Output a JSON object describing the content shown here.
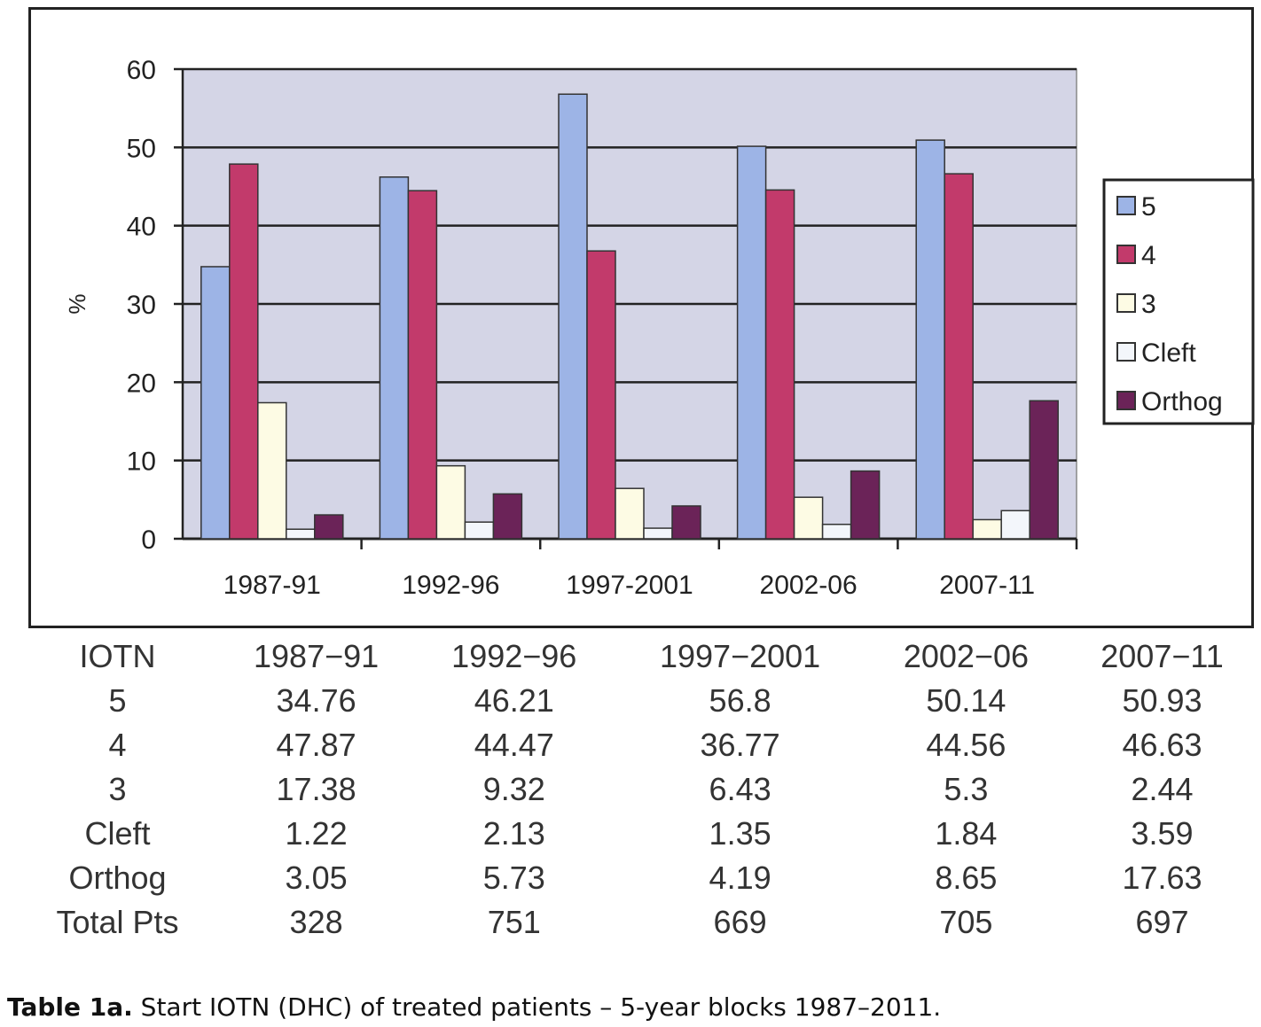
{
  "chart_data": {
    "type": "bar",
    "title": "",
    "xlabel": "",
    "ylabel": "%",
    "ylim": [
      0,
      60
    ],
    "yticks": [
      0,
      10,
      20,
      30,
      40,
      50,
      60
    ],
    "grid": true,
    "legend_position": "right",
    "categories": [
      "1987-91",
      "1992-96",
      "1997-2001",
      "2002-06",
      "2007-11"
    ],
    "series": [
      {
        "name": "5",
        "values": [
          34.76,
          46.21,
          56.8,
          50.14,
          50.93
        ],
        "color": "#9db4e6"
      },
      {
        "name": "4",
        "values": [
          47.87,
          44.47,
          36.77,
          44.56,
          46.63
        ],
        "color": "#c23a6b"
      },
      {
        "name": "3",
        "values": [
          17.38,
          9.32,
          6.43,
          5.3,
          2.44
        ],
        "color": "#fdfbe4"
      },
      {
        "name": "Cleft",
        "values": [
          1.22,
          2.13,
          1.35,
          1.84,
          3.59
        ],
        "color": "#f3f6fb"
      },
      {
        "name": "Orthog",
        "values": [
          3.05,
          5.73,
          4.19,
          8.65,
          17.63
        ],
        "color": "#6b2358"
      }
    ],
    "plot_background": "#d4d5e6"
  },
  "table": {
    "header": [
      "IOTN",
      "1987−91",
      "1992−96",
      "1997−2001",
      "2002−06",
      "2007−11"
    ],
    "rows": [
      [
        "5",
        "34.76",
        "46.21",
        "56.8",
        "50.14",
        "50.93"
      ],
      [
        "4",
        "47.87",
        "44.47",
        "36.77",
        "44.56",
        "46.63"
      ],
      [
        "3",
        "17.38",
        "9.32",
        "6.43",
        "5.3",
        "2.44"
      ],
      [
        "Cleft",
        "1.22",
        "2.13",
        "1.35",
        "1.84",
        "3.59"
      ],
      [
        "Orthog",
        "3.05",
        "5.73",
        "4.19",
        "8.65",
        "17.63"
      ],
      [
        "Total Pts",
        "328",
        "751",
        "669",
        "705",
        "697"
      ]
    ]
  },
  "caption": {
    "label": "Table 1a.",
    "text": " Start IOTN (DHC) of treated patients – 5-year blocks 1987–2011."
  }
}
